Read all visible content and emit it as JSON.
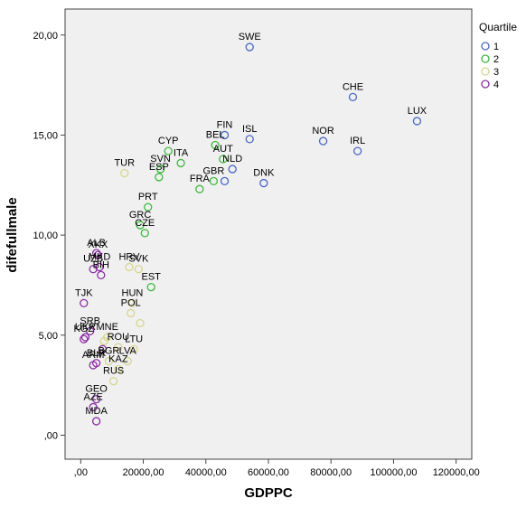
{
  "chart_data": {
    "type": "scatter",
    "title": "",
    "xlabel": "GDPPC",
    "ylabel": "difefullmale",
    "xlim": [
      -5000,
      125000
    ],
    "ylim": [
      -1.2,
      21.3
    ],
    "x_ticks": [
      {
        "value": 0,
        "label": ",00"
      },
      {
        "value": 20000,
        "label": "20000,00"
      },
      {
        "value": 40000,
        "label": "40000,00"
      },
      {
        "value": 60000,
        "label": "60000,00"
      },
      {
        "value": 80000,
        "label": "80000,00"
      },
      {
        "value": 100000,
        "label": "100000,00"
      },
      {
        "value": 120000,
        "label": "120000,00"
      }
    ],
    "y_ticks": [
      {
        "value": 0,
        "label": ",00"
      },
      {
        "value": 5,
        "label": "5,00"
      },
      {
        "value": 10,
        "label": "10,00"
      },
      {
        "value": 15,
        "label": "15,00"
      },
      {
        "value": 20,
        "label": "20,00"
      }
    ],
    "grid": false,
    "background": "#f0f0f0",
    "legend": {
      "title": "Quartile",
      "placement": "right",
      "entries": [
        {
          "label": "1",
          "color": "#4a68c4"
        },
        {
          "label": "2",
          "color": "#3db83d"
        },
        {
          "label": "3",
          "color": "#d6d690"
        },
        {
          "label": "4",
          "color": "#8c2da3"
        }
      ]
    },
    "series": [
      {
        "name": "1",
        "color": "#4a68c4",
        "points": [
          {
            "label": "SWE",
            "x": 54000,
            "y": 19.4
          },
          {
            "label": "CHE",
            "x": 87000,
            "y": 16.9
          },
          {
            "label": "LUX",
            "x": 107500,
            "y": 15.7
          },
          {
            "label": "NOR",
            "x": 77500,
            "y": 14.7
          },
          {
            "label": "IRL",
            "x": 88500,
            "y": 14.2
          },
          {
            "label": "FIN",
            "x": 46000,
            "y": 15.0
          },
          {
            "label": "ISL",
            "x": 54000,
            "y": 14.8
          },
          {
            "label": "DNK",
            "x": 58500,
            "y": 12.6
          },
          {
            "label": "NLD",
            "x": 48500,
            "y": 13.3
          },
          {
            "label": "",
            "x": 46000,
            "y": 12.7
          }
        ]
      },
      {
        "name": "2",
        "color": "#3db83d",
        "points": [
          {
            "label": "BEL",
            "x": 43000,
            "y": 14.5
          },
          {
            "label": "AUT",
            "x": 45500,
            "y": 13.8
          },
          {
            "label": "CYP",
            "x": 28000,
            "y": 14.2
          },
          {
            "label": "ITA",
            "x": 32000,
            "y": 13.6
          },
          {
            "label": "SVN",
            "x": 25500,
            "y": 13.3
          },
          {
            "label": "ESP",
            "x": 25000,
            "y": 12.9
          },
          {
            "label": "FRA",
            "x": 38000,
            "y": 12.3
          },
          {
            "label": "GBR",
            "x": 42500,
            "y": 12.7
          },
          {
            "label": "PRT",
            "x": 21500,
            "y": 11.4
          },
          {
            "label": "GRC",
            "x": 19000,
            "y": 10.5
          },
          {
            "label": "CZE",
            "x": 20500,
            "y": 10.1
          },
          {
            "label": "EST",
            "x": 22500,
            "y": 7.4
          }
        ]
      },
      {
        "name": "3",
        "color": "#d6d690",
        "points": [
          {
            "label": "TUR",
            "x": 14000,
            "y": 13.1
          },
          {
            "label": "HRV",
            "x": 15500,
            "y": 8.4
          },
          {
            "label": "SVK",
            "x": 18500,
            "y": 8.3
          },
          {
            "label": "HUN",
            "x": 16500,
            "y": 6.6
          },
          {
            "label": "POL",
            "x": 16000,
            "y": 6.1
          },
          {
            "label": "",
            "x": 19000,
            "y": 5.6
          },
          {
            "label": "MNE",
            "x": 8500,
            "y": 4.9
          },
          {
            "label": "",
            "x": 7500,
            "y": 4.7
          },
          {
            "label": "ROU",
            "x": 12000,
            "y": 4.4
          },
          {
            "label": "LTU",
            "x": 17000,
            "y": 4.3
          },
          {
            "label": "BGR",
            "x": 9000,
            "y": 3.7
          },
          {
            "label": "LVA",
            "x": 15000,
            "y": 3.7
          },
          {
            "label": "KAZ",
            "x": 12000,
            "y": 3.3
          },
          {
            "label": "RUS",
            "x": 10500,
            "y": 2.7
          }
        ]
      },
      {
        "name": "4",
        "color": "#8c2da3",
        "points": [
          {
            "label": "ALB",
            "x": 5000,
            "y": 9.1
          },
          {
            "label": "XKX",
            "x": 5500,
            "y": 9.0
          },
          {
            "label": "UZB",
            "x": 4000,
            "y": 8.3
          },
          {
            "label": "MKD",
            "x": 6000,
            "y": 8.4
          },
          {
            "label": "BIH",
            "x": 6500,
            "y": 8.0
          },
          {
            "label": "TJK",
            "x": 1000,
            "y": 6.6
          },
          {
            "label": "UKR",
            "x": 1500,
            "y": 4.9
          },
          {
            "label": "SRB",
            "x": 3000,
            "y": 5.2
          },
          {
            "label": "KGZ",
            "x": 1000,
            "y": 4.8
          },
          {
            "label": "",
            "x": 7000,
            "y": 4.3
          },
          {
            "label": "BLR",
            "x": 5000,
            "y": 3.6
          },
          {
            "label": "ARM",
            "x": 4000,
            "y": 3.5
          },
          {
            "label": "GEO",
            "x": 5000,
            "y": 1.8
          },
          {
            "label": "AZE",
            "x": 4000,
            "y": 1.4
          },
          {
            "label": "MDA",
            "x": 5000,
            "y": 0.7
          }
        ]
      }
    ]
  }
}
